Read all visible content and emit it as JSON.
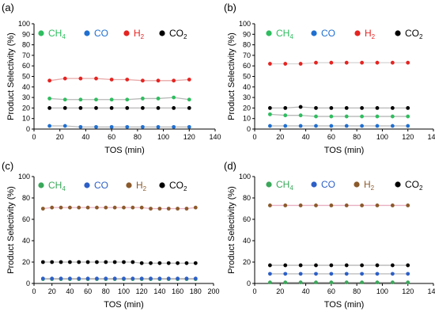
{
  "figure": {
    "background": "#ffffff"
  },
  "chart_data": [
    {
      "panel_label": "(a)",
      "type": "line",
      "xlabel": "TOS (min)",
      "ylabel": "Product Selectivity (%)",
      "xlim": [
        0,
        140
      ],
      "ylim": [
        0,
        100
      ],
      "xticks": [
        0,
        20,
        40,
        60,
        80,
        100,
        120,
        140
      ],
      "yticks": [
        0,
        10,
        20,
        30,
        40,
        50,
        60,
        70,
        80,
        90,
        100
      ],
      "grid": false,
      "legend": "top",
      "x": [
        12,
        24,
        36,
        48,
        60,
        72,
        84,
        96,
        108,
        120
      ],
      "series": [
        {
          "name": "CH4",
          "sub": "4",
          "base": "CH",
          "color": "#2ebd5f",
          "values": [
            29,
            28,
            28,
            28,
            28,
            28,
            29,
            29,
            30,
            28
          ]
        },
        {
          "name": "CO",
          "sub": "",
          "base": "CO",
          "color": "#1f6fd0",
          "values": [
            3,
            3,
            2,
            2,
            2,
            2,
            2,
            2,
            2,
            2
          ]
        },
        {
          "name": "H2",
          "sub": "2",
          "base": "H",
          "color": "#e52421",
          "values": [
            46,
            48,
            48,
            48,
            47,
            47,
            46,
            46,
            46,
            47
          ]
        },
        {
          "name": "CO2",
          "sub": "2",
          "base": "CO",
          "color": "#000000",
          "values": [
            20,
            20,
            20,
            20,
            20,
            20,
            20,
            20,
            20,
            20
          ]
        }
      ]
    },
    {
      "panel_label": "(b)",
      "type": "line",
      "xlabel": "TOS (min)",
      "ylabel": "Product Selectivity (%)",
      "xlim": [
        0,
        140
      ],
      "ylim": [
        0,
        100
      ],
      "xticks": [
        0,
        20,
        40,
        60,
        80,
        100,
        120,
        140
      ],
      "yticks": [
        0,
        10,
        20,
        30,
        40,
        50,
        60,
        70,
        80,
        90,
        100
      ],
      "grid": false,
      "legend": "top",
      "x": [
        12,
        24,
        36,
        48,
        60,
        72,
        84,
        96,
        108,
        120
      ],
      "series": [
        {
          "name": "CH4",
          "sub": "4",
          "base": "CH",
          "color": "#2ebd5f",
          "values": [
            14,
            13,
            13,
            12,
            12,
            12,
            12,
            12,
            12,
            12
          ]
        },
        {
          "name": "CO",
          "sub": "",
          "base": "CO",
          "color": "#1f6fd0",
          "values": [
            3,
            3,
            3,
            3,
            3,
            3,
            3,
            3,
            3,
            3
          ]
        },
        {
          "name": "H2",
          "sub": "2",
          "base": "H",
          "color": "#e52421",
          "values": [
            62,
            62,
            62,
            63,
            63,
            63,
            63,
            63,
            63,
            63
          ]
        },
        {
          "name": "CO2",
          "sub": "2",
          "base": "CO",
          "color": "#000000",
          "values": [
            20,
            20,
            21,
            20,
            20,
            20,
            20,
            20,
            20,
            20
          ]
        }
      ]
    },
    {
      "panel_label": "(c)",
      "type": "line",
      "xlabel": "TOS (min)",
      "ylabel": "Product Selectivity (%)",
      "xlim": [
        0,
        200
      ],
      "ylim": [
        0,
        100
      ],
      "xticks": [
        0,
        20,
        40,
        60,
        80,
        100,
        120,
        140,
        160,
        180,
        200
      ],
      "yticks": [
        0,
        20,
        40,
        60,
        80,
        100
      ],
      "grid": false,
      "legend": "top",
      "x": [
        10,
        20,
        30,
        40,
        50,
        60,
        70,
        80,
        90,
        100,
        110,
        120,
        130,
        140,
        150,
        160,
        170,
        180
      ],
      "series": [
        {
          "name": "CH4",
          "sub": "4",
          "base": "CH",
          "color": "#3aa85a",
          "values": [
            4,
            4,
            4,
            4,
            4,
            4,
            4,
            4,
            4,
            4,
            4,
            4,
            4,
            4,
            4,
            4,
            4,
            4
          ]
        },
        {
          "name": "CO",
          "sub": "",
          "base": "CO",
          "color": "#2c5fc7",
          "values": [
            4.6,
            4.6,
            4.6,
            4.6,
            4.6,
            4.6,
            4.6,
            4.6,
            4.6,
            4.6,
            4.6,
            4.6,
            4.6,
            4.6,
            4.6,
            4.6,
            4.6,
            4.6
          ]
        },
        {
          "name": "H2",
          "sub": "2",
          "base": "H",
          "color": "#8b5a2b",
          "values": [
            70,
            71,
            71,
            71,
            71,
            71,
            71,
            71,
            71,
            71,
            71,
            71,
            70,
            70,
            70,
            70,
            70,
            71
          ]
        },
        {
          "name": "CO2",
          "sub": "2",
          "base": "CO",
          "color": "#000000",
          "values": [
            20,
            20,
            20,
            20,
            20,
            20,
            20,
            20,
            20,
            20,
            20,
            19,
            19,
            19,
            19,
            19,
            19,
            19
          ]
        }
      ]
    },
    {
      "panel_label": "(d)",
      "type": "line",
      "xlabel": "TOS (min)",
      "ylabel": "Product Selectivity (%)",
      "xlim": [
        0,
        140
      ],
      "ylim": [
        0,
        100
      ],
      "xticks": [
        0,
        20,
        40,
        60,
        80,
        100,
        120,
        140
      ],
      "yticks": [
        0,
        20,
        40,
        60,
        80,
        100
      ],
      "grid": false,
      "legend": "top",
      "x": [
        12,
        24,
        36,
        48,
        60,
        72,
        84,
        96,
        108,
        120
      ],
      "series": [
        {
          "name": "CH4",
          "sub": "4",
          "base": "CH",
          "color": "#3aa85a",
          "values": [
            1,
            1,
            1,
            1,
            1,
            1,
            1,
            1,
            1,
            1
          ]
        },
        {
          "name": "CO",
          "sub": "",
          "base": "CO",
          "color": "#2c5fc7",
          "values": [
            9,
            9,
            9,
            9,
            9,
            9,
            9,
            9,
            9,
            9
          ]
        },
        {
          "name": "H2",
          "sub": "2",
          "base": "H",
          "color": "#8b5a2b",
          "values": [
            73,
            73,
            73,
            73,
            73,
            73,
            73,
            73,
            73,
            73
          ]
        },
        {
          "name": "CO2",
          "sub": "2",
          "base": "CO",
          "color": "#000000",
          "values": [
            17,
            17,
            17,
            17,
            17,
            17,
            17,
            17,
            17,
            17
          ]
        }
      ]
    }
  ]
}
